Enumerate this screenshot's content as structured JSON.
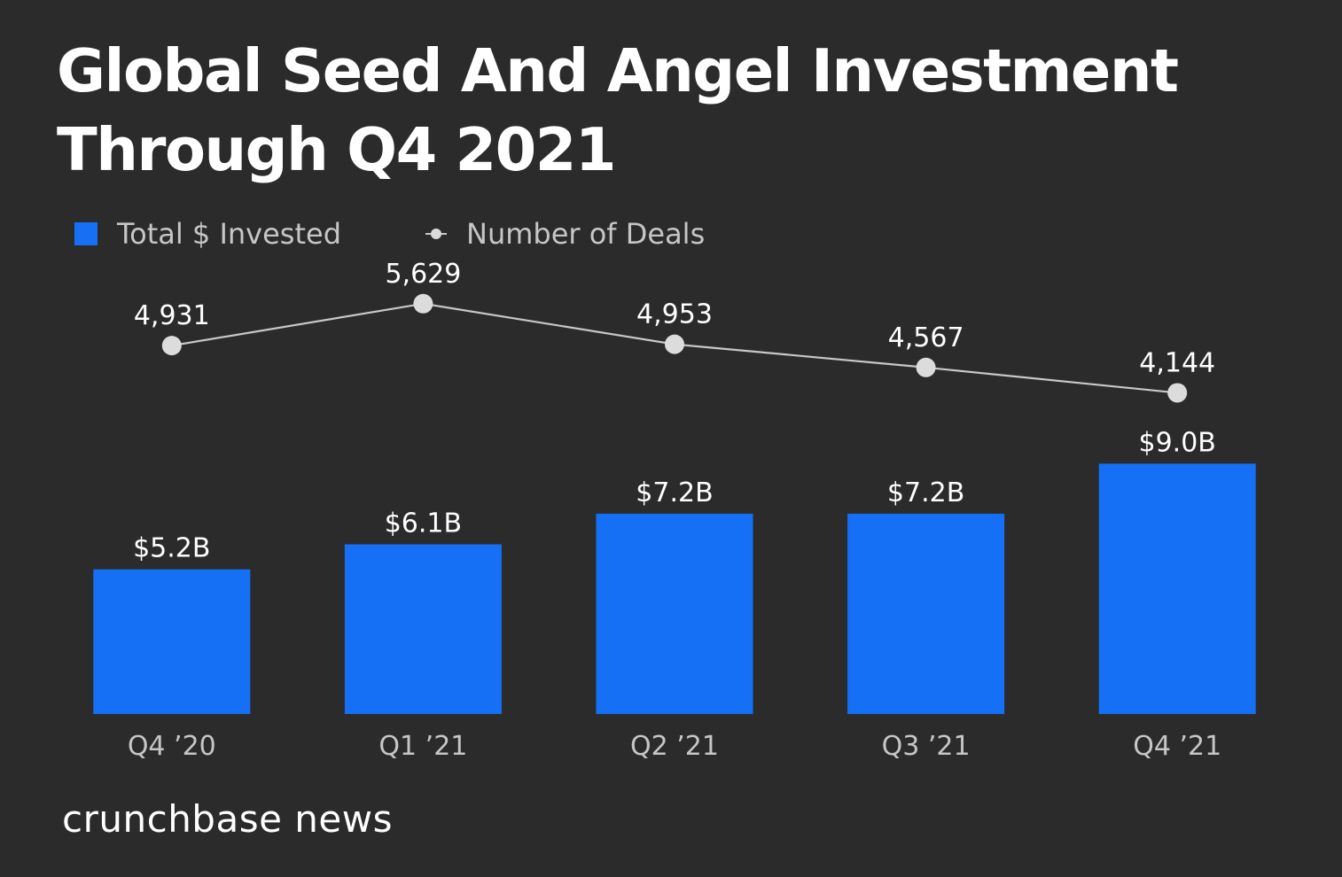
{
  "colors": {
    "background": "#2b2b2b",
    "bar": "#1570f6",
    "line": "#c8c8c8",
    "marker": "#dcdcdc",
    "label": "#ffffff",
    "axis_label": "#c6c6c6"
  },
  "chart_data": {
    "type": "bar",
    "title_lines": [
      "Global Seed And Angel Investment",
      "Through Q4 2021"
    ],
    "categories": [
      "Q4 ’20",
      "Q1 ’21",
      "Q2 ’21",
      "Q3 ’21",
      "Q4 ’21"
    ],
    "series": [
      {
        "name": "Total $ Invested",
        "type": "bar",
        "values": [
          5.2,
          6.1,
          7.2,
          7.2,
          9.0
        ],
        "labels": [
          "$5.2B",
          "$6.1B",
          "$7.2B",
          "$7.2B",
          "$9.0B"
        ],
        "unit": "$B"
      },
      {
        "name": "Number of Deals",
        "type": "line",
        "values": [
          4931,
          5629,
          4953,
          4567,
          4144
        ],
        "labels": [
          "4,931",
          "5,629",
          "4,953",
          "4,567",
          "4,144"
        ]
      }
    ],
    "legend": [
      "Total $ Invested",
      "Number of Deals"
    ],
    "legend_position": "top-left",
    "grid": false,
    "bar_ylim": [
      0,
      10
    ],
    "line_ylim": [
      0,
      7000
    ]
  },
  "brand": "crunchbase news"
}
